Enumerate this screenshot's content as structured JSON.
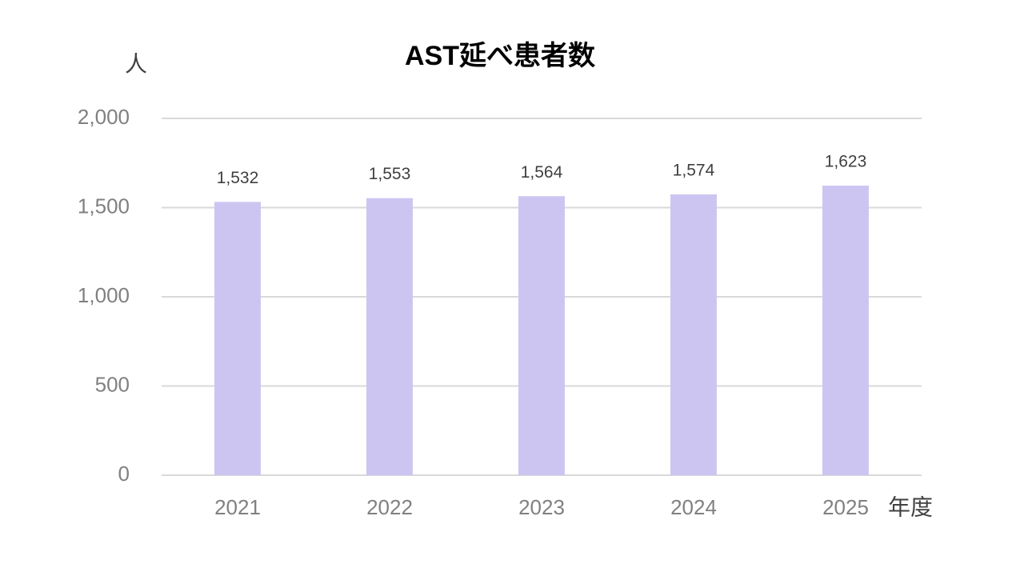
{
  "chart_data": {
    "type": "bar",
    "title": "AST延べ患者数",
    "y_label": "人",
    "x_label": "年度",
    "categories": [
      "2021",
      "2022",
      "2023",
      "2024",
      "2025"
    ],
    "values": [
      1532,
      1553,
      1564,
      1574,
      1623
    ],
    "value_labels": [
      "1,532",
      "1,553",
      "1,564",
      "1,574",
      "1,623"
    ],
    "color": "#cdc5f1",
    "ylim": [
      0,
      2000
    ],
    "yticks": [
      0,
      500,
      {
        "value": 1000,
        "label": "1,000"
      },
      {
        "value": 1500,
        "label": "1,500"
      },
      {
        "value": 2000,
        "label": "2,000"
      }
    ],
    "grid": true
  }
}
